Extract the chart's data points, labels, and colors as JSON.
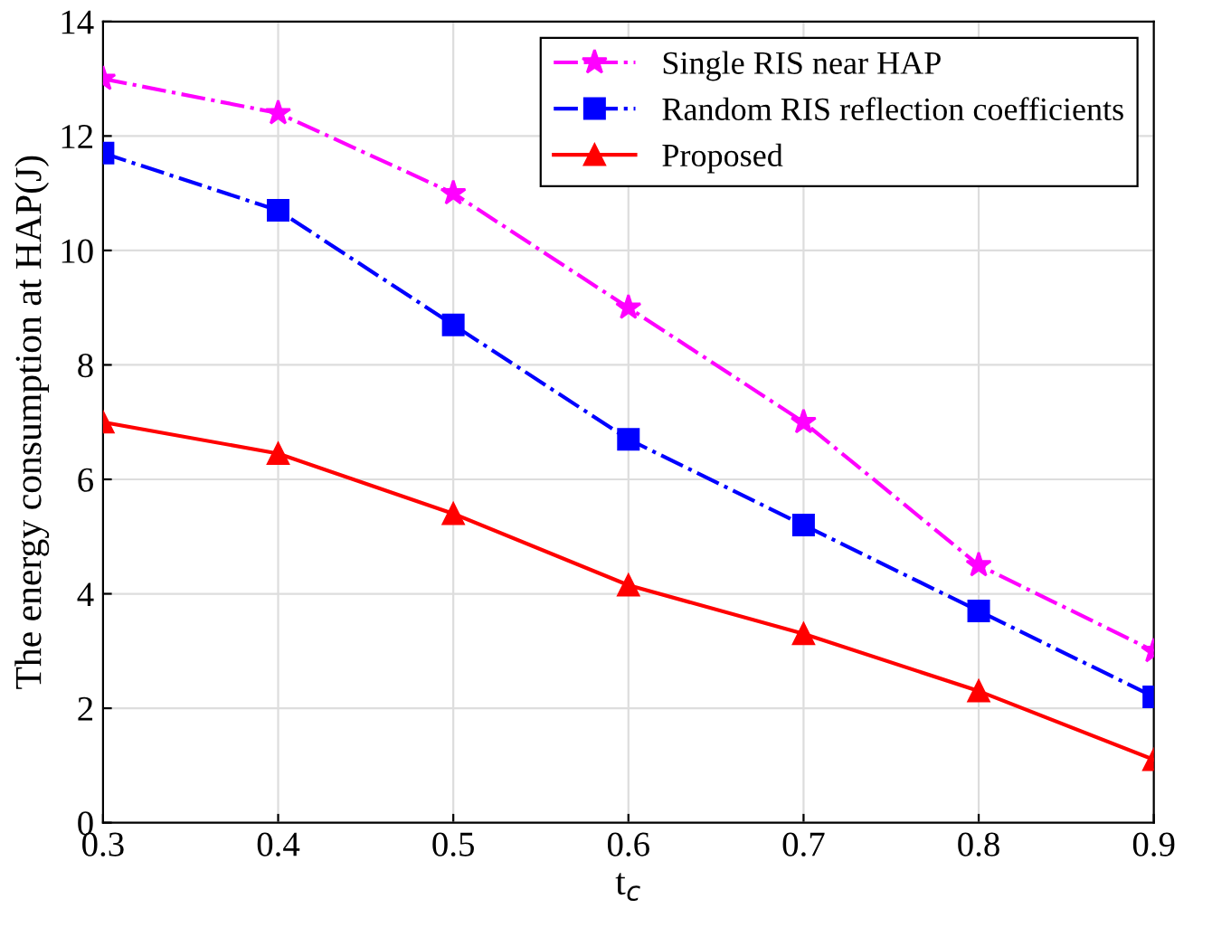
{
  "chart_data": {
    "type": "line",
    "xlabel": "t$_{c}$",
    "ylabel": "The energy consumption at HAP(J)",
    "x": [
      0.3,
      0.4,
      0.5,
      0.6,
      0.7,
      0.8,
      0.9
    ],
    "series": [
      {
        "name": "Single RIS near HAP",
        "color": "#ff00ff",
        "marker": "star",
        "line_style": "dashdot",
        "values": [
          13,
          12.4,
          11,
          9,
          7,
          4.5,
          3
        ]
      },
      {
        "name": "Random RIS reflection coefficients",
        "color": "#0000ff",
        "marker": "square",
        "line_style": "dashdot",
        "values": [
          11.7,
          10.7,
          8.7,
          6.7,
          5.2,
          3.7,
          2.2
        ]
      },
      {
        "name": "Proposed",
        "color": "#ff0000",
        "marker": "triangle",
        "line_style": "solid",
        "values": [
          7,
          6.45,
          5.4,
          4.15,
          3.3,
          2.3,
          1.1
        ]
      }
    ],
    "xlim": [
      0.3,
      0.9
    ],
    "xticks": [
      0.3,
      0.4,
      0.5,
      0.6,
      0.7,
      0.8,
      0.9
    ],
    "ylim": [
      0,
      14
    ],
    "yticks": [
      0,
      2,
      4,
      6,
      8,
      10,
      12,
      14
    ],
    "grid": true,
    "legend": "top right"
  }
}
